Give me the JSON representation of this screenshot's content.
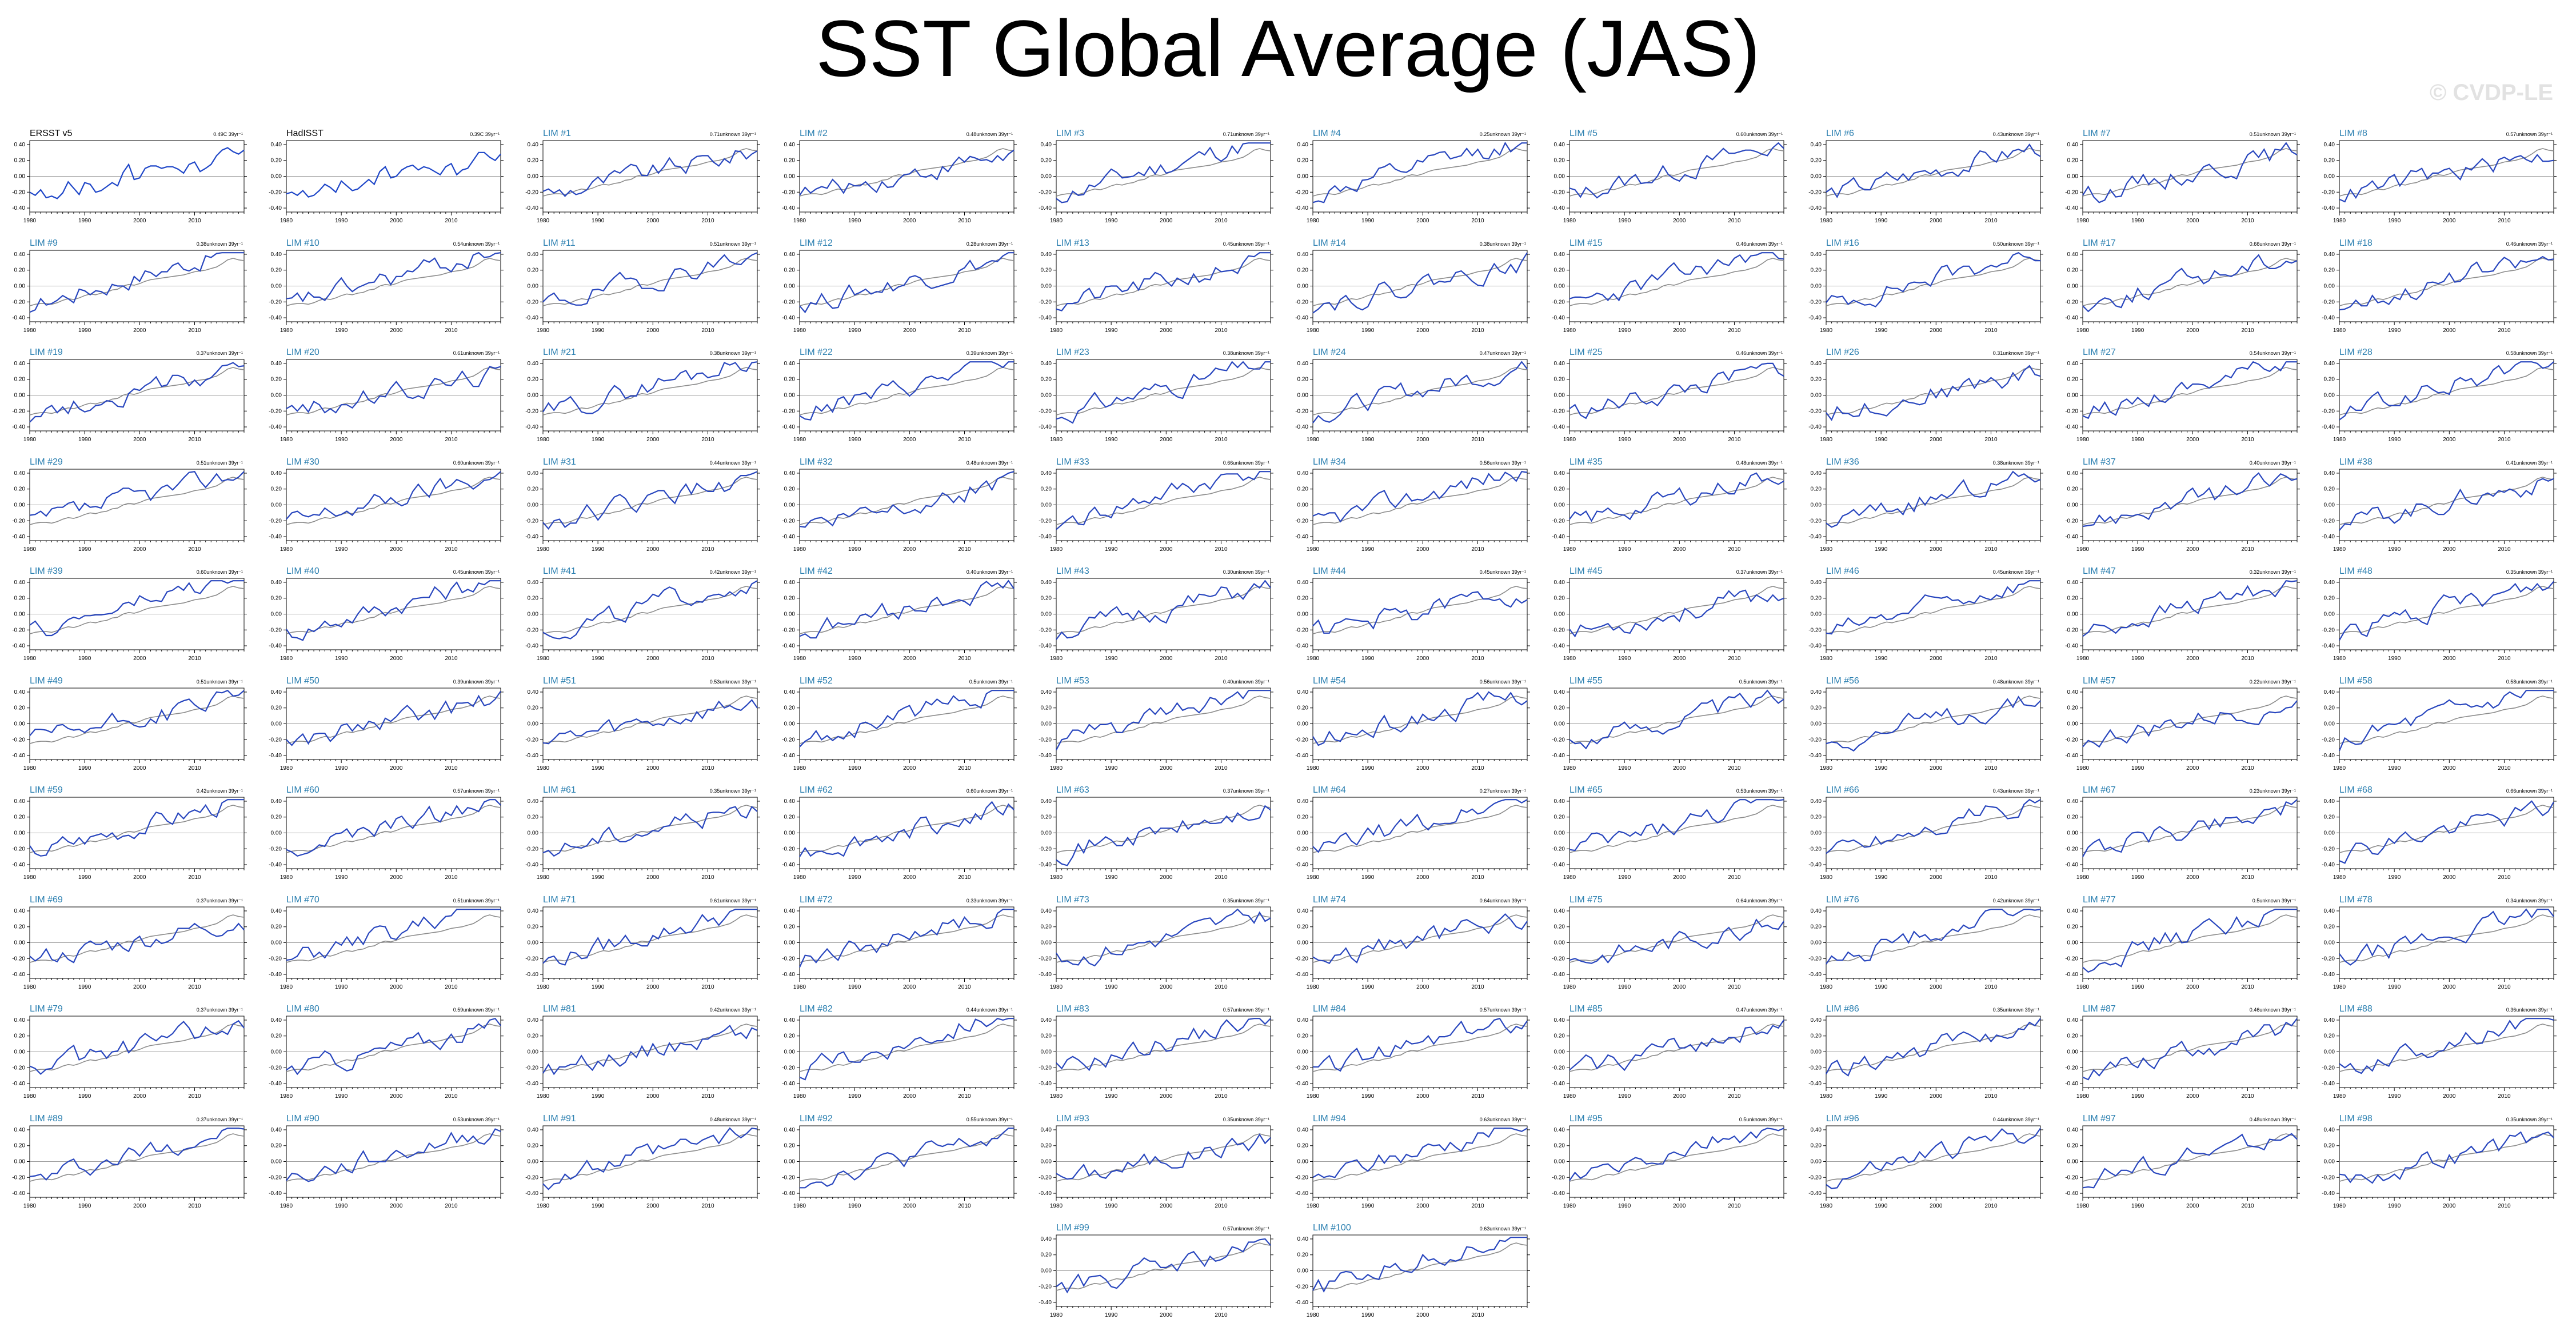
{
  "title": "SST Global Average (JAS)",
  "watermark": "© CVDP-LE",
  "colors": {
    "obs_line": "#1e46c8",
    "member_line": "#2846be",
    "ensemble_mean_line": "#8c8c8c",
    "obs_title": "#000000",
    "member_title": "#2a7fb0",
    "zero_line": "#9a9a9a"
  },
  "chart_data": {
    "type": "line",
    "x_range": [
      1980,
      2019
    ],
    "ylim": [
      -0.45,
      0.45
    ],
    "x_ticks": [
      1980,
      1990,
      2000,
      2010
    ],
    "y_ticks": [
      0.4,
      0.2,
      0.0,
      -0.2,
      -0.4
    ],
    "y_tick_labels": [
      "0.40",
      "0.20",
      "0.00",
      "-0.20",
      "-0.40"
    ],
    "legend": "none",
    "grid": false,
    "ensemble_mean": [
      -0.25,
      -0.23,
      -0.22,
      -0.22,
      -0.23,
      -0.21,
      -0.18,
      -0.16,
      -0.17,
      -0.15,
      -0.12,
      -0.1,
      -0.11,
      -0.09,
      -0.08,
      -0.05,
      -0.04,
      0.0,
      0.02,
      0.01,
      0.03,
      0.06,
      0.08,
      0.09,
      0.1,
      0.11,
      0.12,
      0.13,
      0.14,
      0.16,
      0.18,
      0.19,
      0.2,
      0.22,
      0.24,
      0.28,
      0.33,
      0.35,
      0.33,
      0.32
    ],
    "panels": [
      {
        "title": "ERSST v5",
        "rate": "0.49C 39yr⁻¹",
        "values": [
          -0.2,
          -0.24,
          -0.17,
          -0.27,
          -0.25,
          -0.28,
          -0.21,
          -0.07,
          -0.15,
          -0.23,
          -0.08,
          -0.1,
          -0.2,
          -0.18,
          -0.13,
          -0.08,
          -0.12,
          0.05,
          0.15,
          -0.04,
          -0.02,
          0.1,
          0.13,
          0.13,
          0.1,
          0.12,
          0.12,
          0.09,
          0.04,
          0.15,
          0.18,
          0.06,
          0.1,
          0.15,
          0.26,
          0.33,
          0.36,
          0.31,
          0.28,
          0.33
        ]
      },
      {
        "title": "HadISST",
        "rate": "0.39C 39yr⁻¹",
        "values": [
          -0.22,
          -0.2,
          -0.24,
          -0.18,
          -0.26,
          -0.24,
          -0.18,
          -0.1,
          -0.14,
          -0.2,
          -0.06,
          -0.12,
          -0.18,
          -0.16,
          -0.1,
          -0.04,
          -0.1,
          0.06,
          0.12,
          -0.02,
          0.0,
          0.08,
          0.12,
          0.14,
          0.08,
          0.12,
          0.1,
          0.06,
          0.02,
          0.12,
          0.16,
          0.02,
          0.08,
          0.1,
          0.2,
          0.3,
          0.3,
          0.24,
          0.2,
          0.28
        ]
      },
      {
        "title": "LIM #1",
        "rate": "0.71unknown 39yr⁻¹"
      },
      {
        "title": "LIM #2",
        "rate": "0.48unknown 39yr⁻¹"
      },
      {
        "title": "LIM #3",
        "rate": "0.71unknown 39yr⁻¹"
      },
      {
        "title": "LIM #4",
        "rate": "0.25unknown 39yr⁻¹"
      },
      {
        "title": "LIM #5",
        "rate": "0.60unknown 39yr⁻¹"
      },
      {
        "title": "LIM #6",
        "rate": "0.43unknown 39yr⁻¹"
      },
      {
        "title": "LIM #7",
        "rate": "0.51unknown 39yr⁻¹"
      },
      {
        "title": "LIM #8",
        "rate": "0.57unknown 39yr⁻¹"
      },
      {
        "title": "LIM #9",
        "rate": "0.38unknown 39yr⁻¹"
      },
      {
        "title": "LIM #10",
        "rate": "0.54unknown 39yr⁻¹"
      },
      {
        "title": "LIM #11",
        "rate": "0.51unknown 39yr⁻¹"
      },
      {
        "title": "LIM #12",
        "rate": "0.28unknown 39yr⁻¹"
      },
      {
        "title": "LIM #13",
        "rate": "0.45unknown 39yr⁻¹"
      },
      {
        "title": "LIM #14",
        "rate": "0.38unknown 39yr⁻¹"
      },
      {
        "title": "LIM #15",
        "rate": "0.46unknown 39yr⁻¹"
      },
      {
        "title": "LIM #16",
        "rate": "0.50unknown 39yr⁻¹"
      },
      {
        "title": "LIM #17",
        "rate": "0.66unknown 39yr⁻¹"
      },
      {
        "title": "LIM #18",
        "rate": "0.46unknown 39yr⁻¹"
      },
      {
        "title": "LIM #19",
        "rate": "0.37unknown 39yr⁻¹"
      },
      {
        "title": "LIM #20",
        "rate": "0.61unknown 39yr⁻¹"
      },
      {
        "title": "LIM #21",
        "rate": "0.38unknown 39yr⁻¹"
      },
      {
        "title": "LIM #22",
        "rate": "0.39unknown 39yr⁻¹"
      },
      {
        "title": "LIM #23",
        "rate": "0.38unknown 39yr⁻¹"
      },
      {
        "title": "LIM #24",
        "rate": "0.47unknown 39yr⁻¹"
      },
      {
        "title": "LIM #25",
        "rate": "0.46unknown 39yr⁻¹"
      },
      {
        "title": "LIM #26",
        "rate": "0.31unknown 39yr⁻¹"
      },
      {
        "title": "LIM #27",
        "rate": "0.54unknown 39yr⁻¹"
      },
      {
        "title": "LIM #28",
        "rate": "0.58unknown 39yr⁻¹"
      },
      {
        "title": "LIM #29",
        "rate": "0.51unknown 39yr⁻¹"
      },
      {
        "title": "LIM #30",
        "rate": "0.60unknown 39yr⁻¹"
      },
      {
        "title": "LIM #31",
        "rate": "0.44unknown 39yr⁻¹"
      },
      {
        "title": "LIM #32",
        "rate": "0.48unknown 39yr⁻¹"
      },
      {
        "title": "LIM #33",
        "rate": "0.66unknown 39yr⁻¹"
      },
      {
        "title": "LIM #34",
        "rate": "0.56unknown 39yr⁻¹"
      },
      {
        "title": "LIM #35",
        "rate": "0.48unknown 39yr⁻¹"
      },
      {
        "title": "LIM #36",
        "rate": "0.38unknown 39yr⁻¹"
      },
      {
        "title": "LIM #37",
        "rate": "0.40unknown 39yr⁻¹"
      },
      {
        "title": "LIM #38",
        "rate": "0.41unknown 39yr⁻¹"
      },
      {
        "title": "LIM #39",
        "rate": "0.60unknown 39yr⁻¹"
      },
      {
        "title": "LIM #40",
        "rate": "0.45unknown 39yr⁻¹"
      },
      {
        "title": "LIM #41",
        "rate": "0.42unknown 39yr⁻¹"
      },
      {
        "title": "LIM #42",
        "rate": "0.40unknown 39yr⁻¹"
      },
      {
        "title": "LIM #43",
        "rate": "0.30unknown 39yr⁻¹"
      },
      {
        "title": "LIM #44",
        "rate": "0.45unknown 39yr⁻¹"
      },
      {
        "title": "LIM #45",
        "rate": "0.37unknown 39yr⁻¹"
      },
      {
        "title": "LIM #46",
        "rate": "0.45unknown 39yr⁻¹"
      },
      {
        "title": "LIM #47",
        "rate": "0.32unknown 39yr⁻¹"
      },
      {
        "title": "LIM #48",
        "rate": "0.35unknown 39yr⁻¹"
      },
      {
        "title": "LIM #49",
        "rate": "0.51unknown 39yr⁻¹"
      },
      {
        "title": "LIM #50",
        "rate": "0.39unknown 39yr⁻¹"
      },
      {
        "title": "LIM #51",
        "rate": "0.53unknown 39yr⁻¹"
      },
      {
        "title": "LIM #52",
        "rate": "0.5unknown 39yr⁻¹"
      },
      {
        "title": "LIM #53",
        "rate": "0.40unknown 39yr⁻¹"
      },
      {
        "title": "LIM #54",
        "rate": "0.56unknown 39yr⁻¹"
      },
      {
        "title": "LIM #55",
        "rate": "0.5unknown 39yr⁻¹"
      },
      {
        "title": "LIM #56",
        "rate": "0.48unknown 39yr⁻¹"
      },
      {
        "title": "LIM #57",
        "rate": "0.22unknown 39yr⁻¹"
      },
      {
        "title": "LIM #58",
        "rate": "0.58unknown 39yr⁻¹"
      },
      {
        "title": "LIM #59",
        "rate": "0.42unknown 39yr⁻¹"
      },
      {
        "title": "LIM #60",
        "rate": "0.57unknown 39yr⁻¹"
      },
      {
        "title": "LIM #61",
        "rate": "0.35unknown 39yr⁻¹"
      },
      {
        "title": "LIM #62",
        "rate": "0.60unknown 39yr⁻¹"
      },
      {
        "title": "LIM #63",
        "rate": "0.37unknown 39yr⁻¹"
      },
      {
        "title": "LIM #64",
        "rate": "0.27unknown 39yr⁻¹"
      },
      {
        "title": "LIM #65",
        "rate": "0.53unknown 39yr⁻¹"
      },
      {
        "title": "LIM #66",
        "rate": "0.43unknown 39yr⁻¹"
      },
      {
        "title": "LIM #67",
        "rate": "0.23unknown 39yr⁻¹"
      },
      {
        "title": "LIM #68",
        "rate": "0.66unknown 39yr⁻¹"
      },
      {
        "title": "LIM #69",
        "rate": "0.37unknown 39yr⁻¹"
      },
      {
        "title": "LIM #70",
        "rate": "0.51unknown 39yr⁻¹"
      },
      {
        "title": "LIM #71",
        "rate": "0.61unknown 39yr⁻¹"
      },
      {
        "title": "LIM #72",
        "rate": "0.33unknown 39yr⁻¹"
      },
      {
        "title": "LIM #73",
        "rate": "0.35unknown 39yr⁻¹"
      },
      {
        "title": "LIM #74",
        "rate": "0.64unknown 39yr⁻¹"
      },
      {
        "title": "LIM #75",
        "rate": "0.64unknown 39yr⁻¹"
      },
      {
        "title": "LIM #76",
        "rate": "0.42unknown 39yr⁻¹"
      },
      {
        "title": "LIM #77",
        "rate": "0.5unknown 39yr⁻¹"
      },
      {
        "title": "LIM #78",
        "rate": "0.34unknown 39yr⁻¹"
      },
      {
        "title": "LIM #79",
        "rate": "0.37unknown 39yr⁻¹"
      },
      {
        "title": "LIM #80",
        "rate": "0.59unknown 39yr⁻¹"
      },
      {
        "title": "LIM #81",
        "rate": "0.42unknown 39yr⁻¹"
      },
      {
        "title": "LIM #82",
        "rate": "0.44unknown 39yr⁻¹"
      },
      {
        "title": "LIM #83",
        "rate": "0.57unknown 39yr⁻¹"
      },
      {
        "title": "LIM #84",
        "rate": "0.57unknown 39yr⁻¹"
      },
      {
        "title": "LIM #85",
        "rate": "0.47unknown 39yr⁻¹"
      },
      {
        "title": "LIM #86",
        "rate": "0.35unknown 39yr⁻¹"
      },
      {
        "title": "LIM #87",
        "rate": "0.46unknown 39yr⁻¹"
      },
      {
        "title": "LIM #88",
        "rate": "0.36unknown 39yr⁻¹"
      },
      {
        "title": "LIM #89",
        "rate": "0.37unknown 39yr⁻¹"
      },
      {
        "title": "LIM #90",
        "rate": "0.53unknown 39yr⁻¹"
      },
      {
        "title": "LIM #91",
        "rate": "0.48unknown 39yr⁻¹"
      },
      {
        "title": "LIM #92",
        "rate": "0.55unknown 39yr⁻¹"
      },
      {
        "title": "LIM #93",
        "rate": "0.35unknown 39yr⁻¹"
      },
      {
        "title": "LIM #94",
        "rate": "0.63unknown 39yr⁻¹"
      },
      {
        "title": "LIM #95",
        "rate": "0.5unknown 39yr⁻¹"
      },
      {
        "title": "LIM #96",
        "rate": "0.44unknown 39yr⁻¹"
      },
      {
        "title": "LIM #97",
        "rate": "0.48unknown 39yr⁻¹"
      },
      {
        "title": "LIM #98",
        "rate": "0.35unknown 39yr⁻¹"
      },
      {
        "title": "LIM #99",
        "rate": "0.57unknown 39yr⁻¹"
      },
      {
        "title": "LIM #100",
        "rate": "0.63unknown 39yr⁻¹"
      }
    ]
  }
}
